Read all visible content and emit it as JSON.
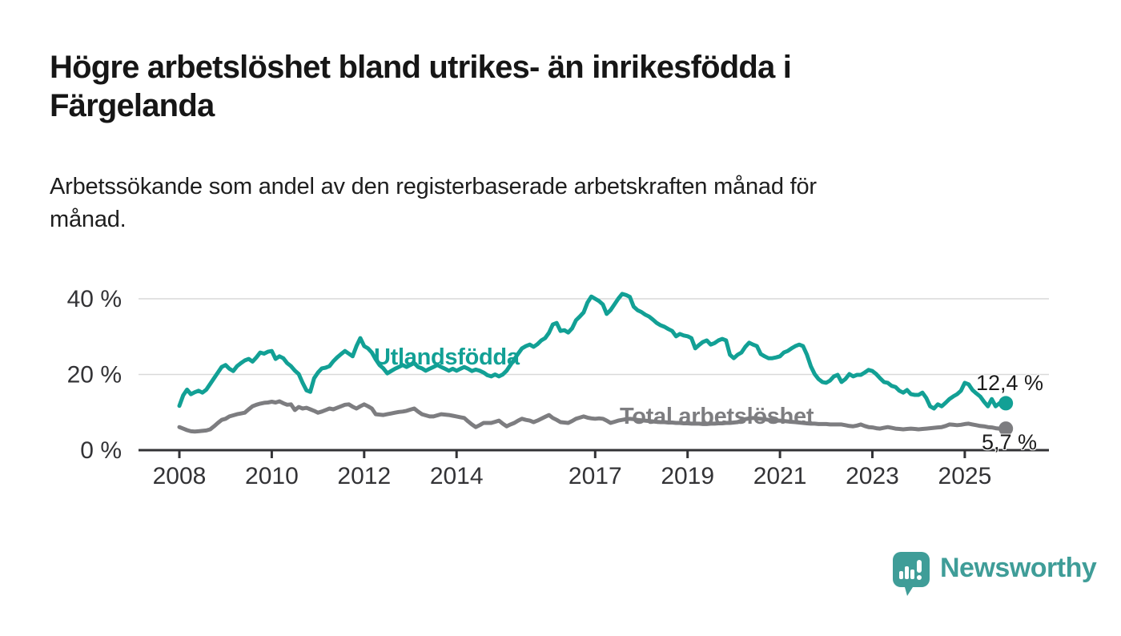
{
  "header": {
    "title_line1": "Högre arbetslöshet bland utrikes- än inrikesfödda i",
    "title_line2": "Färgelanda",
    "subtitle_line1": "Arbetssökande som andel av den registerbaserade arbetskraften månad för",
    "subtitle_line2": "månad."
  },
  "chart_data": {
    "type": "line",
    "frequency": "monthly",
    "x_start": "2008-01",
    "x_end": "2025-10",
    "x_tick_years": [
      2008,
      2010,
      2012,
      2014,
      2017,
      2019,
      2021,
      2023,
      2025
    ],
    "y_ticks": [
      {
        "value": 0,
        "label": "0 %"
      },
      {
        "value": 20,
        "label": "20 %"
      },
      {
        "value": 40,
        "label": "40 %"
      }
    ],
    "ylim": [
      0,
      47
    ],
    "grid": "horizontal",
    "legend_position": "inline-labels",
    "series": [
      {
        "name": "Utlandsfödda",
        "color": "#12A095",
        "end_label": "12,4 %",
        "end_value": 12.4,
        "values": [
          11.7,
          14.5,
          16.0,
          14.8,
          15.3,
          15.7,
          15.2,
          16.0,
          17.5,
          19.0,
          20.5,
          22.0,
          22.5,
          21.5,
          20.9,
          22.2,
          23.0,
          23.7,
          24.1,
          23.4,
          24.5,
          25.8,
          25.5,
          26.0,
          26.2,
          24.1,
          24.8,
          24.3,
          23.0,
          22.2,
          21.0,
          20.1,
          17.8,
          15.8,
          15.4,
          19.0,
          20.5,
          21.6,
          21.8,
          22.2,
          23.5,
          24.5,
          25.4,
          26.2,
          25.5,
          24.8,
          27.5,
          29.6,
          27.5,
          26.9,
          25.8,
          24.0,
          22.5,
          21.6,
          20.3,
          20.9,
          21.5,
          22.0,
          22.5,
          22.0,
          22.5,
          23.0,
          22.0,
          21.6,
          21.0,
          21.5,
          22.0,
          22.5,
          22.0,
          21.5,
          21.0,
          21.5,
          21.0,
          21.5,
          22.0,
          21.5,
          20.9,
          21.3,
          21.0,
          20.5,
          19.8,
          19.5,
          20.0,
          19.5,
          20.0,
          21.0,
          22.5,
          24.0,
          25.5,
          26.9,
          27.5,
          27.9,
          27.3,
          28.0,
          29.0,
          29.6,
          31.0,
          33.2,
          33.6,
          31.5,
          31.7,
          31.1,
          32.2,
          34.3,
          35.3,
          36.4,
          39.0,
          40.6,
          40.0,
          39.4,
          38.5,
          36.0,
          37.0,
          38.5,
          40.0,
          41.3,
          41.0,
          40.5,
          37.9,
          37.0,
          36.5,
          35.8,
          35.3,
          34.5,
          33.6,
          33.0,
          32.6,
          32.0,
          31.5,
          30.1,
          30.7,
          30.3,
          30.1,
          29.6,
          26.9,
          27.8,
          28.6,
          29.0,
          27.9,
          28.3,
          29.0,
          29.4,
          29.0,
          25.2,
          24.3,
          25.2,
          25.8,
          27.3,
          28.4,
          27.9,
          27.5,
          25.4,
          24.8,
          24.3,
          24.3,
          24.5,
          24.8,
          25.8,
          26.2,
          26.9,
          27.5,
          27.9,
          27.5,
          25.2,
          22.2,
          20.1,
          18.8,
          18.0,
          17.8,
          18.4,
          19.5,
          19.9,
          18.0,
          18.8,
          20.1,
          19.5,
          19.9,
          19.9,
          20.5,
          21.2,
          20.9,
          20.1,
          19.0,
          18.0,
          17.8,
          17.0,
          16.7,
          15.7,
          15.2,
          15.9,
          14.8,
          14.6,
          14.6,
          15.2,
          13.8,
          11.6,
          11.0,
          12.1,
          11.6,
          12.5,
          13.5,
          14.2,
          14.8,
          15.7,
          17.8,
          17.4,
          15.9,
          15.0,
          14.2,
          12.8,
          11.6,
          13.5,
          11.6,
          12.4
        ]
      },
      {
        "name": "Total arbetslöshet",
        "color": "#7D7D80",
        "end_label": "5,7 %",
        "end_value": 5.7,
        "values": [
          6.1,
          5.7,
          5.3,
          5.0,
          4.9,
          5.0,
          5.1,
          5.2,
          5.5,
          6.3,
          7.2,
          8.0,
          8.3,
          8.9,
          9.2,
          9.5,
          9.7,
          9.9,
          10.8,
          11.6,
          12.0,
          12.3,
          12.5,
          12.6,
          12.8,
          12.6,
          12.9,
          12.4,
          12.0,
          12.1,
          10.6,
          11.4,
          11.0,
          11.2,
          10.8,
          10.4,
          9.9,
          10.2,
          10.6,
          11.0,
          10.8,
          11.2,
          11.6,
          12.0,
          12.1,
          11.5,
          11.0,
          11.6,
          12.1,
          11.6,
          11.0,
          9.5,
          9.4,
          9.3,
          9.5,
          9.7,
          9.9,
          10.1,
          10.2,
          10.4,
          10.7,
          11.0,
          10.2,
          9.5,
          9.2,
          8.9,
          8.9,
          9.2,
          9.5,
          9.4,
          9.3,
          9.1,
          8.9,
          8.7,
          8.5,
          7.6,
          6.8,
          6.1,
          6.6,
          7.2,
          7.2,
          7.2,
          7.5,
          7.8,
          7.0,
          6.3,
          6.8,
          7.2,
          7.8,
          8.3,
          8.0,
          7.8,
          7.4,
          7.8,
          8.3,
          8.8,
          9.3,
          8.5,
          8.0,
          7.4,
          7.3,
          7.2,
          7.7,
          8.3,
          8.6,
          8.9,
          8.6,
          8.4,
          8.3,
          8.4,
          8.3,
          7.8,
          7.2,
          7.5,
          7.8,
          8.0,
          8.2,
          8.3,
          8.2,
          8.0,
          7.9,
          7.8,
          7.7,
          7.6,
          7.5,
          7.4,
          7.4,
          7.3,
          7.3,
          7.2,
          7.2,
          7.1,
          7.1,
          7.0,
          7.0,
          7.0,
          6.9,
          6.9,
          7.0,
          7.0,
          7.1,
          7.1,
          7.2,
          7.2,
          7.3,
          7.4,
          7.8,
          8.2,
          8.4,
          8.5,
          8.4,
          8.3,
          8.2,
          8.0,
          7.9,
          7.8,
          7.8,
          7.7,
          7.6,
          7.5,
          7.4,
          7.3,
          7.2,
          7.1,
          7.0,
          7.0,
          6.9,
          6.9,
          6.9,
          6.8,
          6.8,
          6.8,
          6.8,
          6.6,
          6.4,
          6.3,
          6.5,
          6.8,
          6.4,
          6.1,
          6.0,
          5.8,
          5.7,
          5.9,
          6.1,
          5.9,
          5.7,
          5.6,
          5.5,
          5.6,
          5.7,
          5.6,
          5.5,
          5.6,
          5.7,
          5.8,
          5.9,
          6.0,
          6.1,
          6.4,
          6.8,
          6.7,
          6.6,
          6.7,
          6.9,
          7.0,
          6.8,
          6.6,
          6.4,
          6.3,
          6.1,
          6.0,
          5.8,
          5.7
        ]
      }
    ]
  },
  "footer": {
    "brand": "Newsworthy"
  },
  "colors": {
    "axis": "#333336",
    "grid": "#D9D9D9",
    "tick_text": "#333336",
    "teal": "#12A095",
    "gray": "#7D7D80",
    "logo": "#3F9D98"
  }
}
